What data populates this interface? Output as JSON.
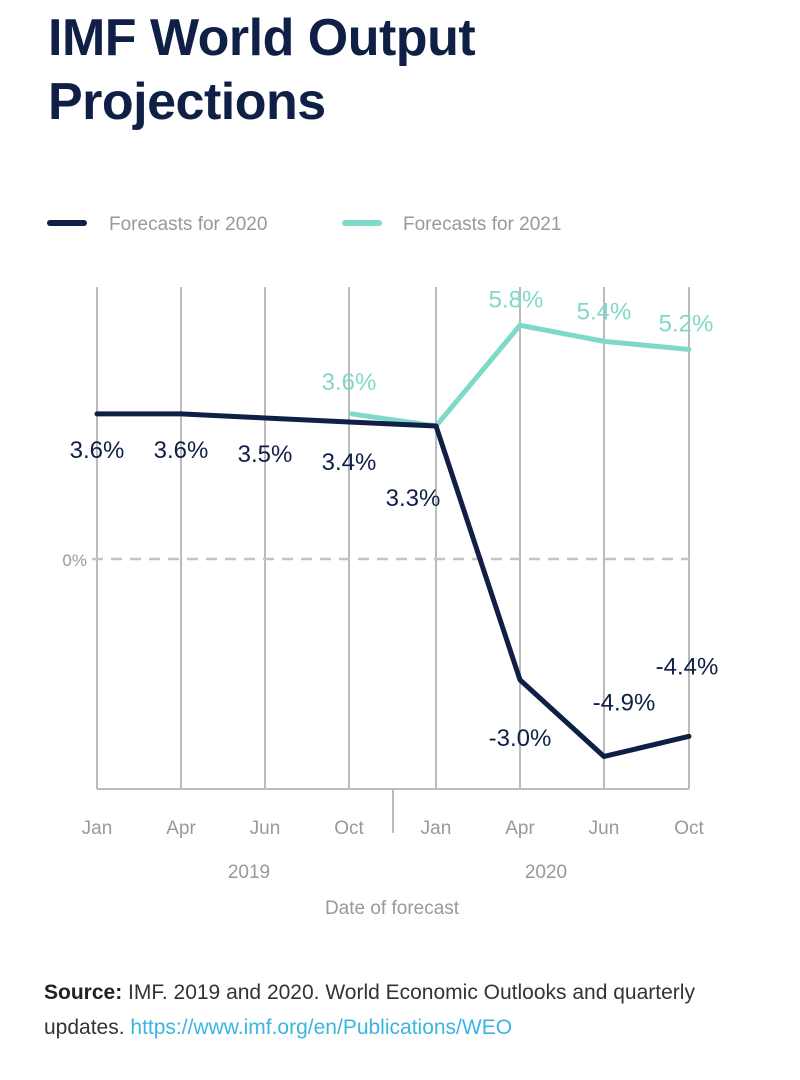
{
  "title": {
    "line1": "IMF World Output",
    "line2": "Projections"
  },
  "colors": {
    "title": "#0f1f45",
    "series_2020": "#0f1f45",
    "series_2021": "#7fd9c8",
    "grid": "#bbbbbb",
    "zero_line": "#c4c4c4",
    "axis_text": "#999999",
    "link": "#3bb4e3"
  },
  "chart_data": {
    "type": "line",
    "x": [
      "Jan",
      "Apr",
      "Jun",
      "Oct",
      "Jan",
      "Apr",
      "Jun",
      "Oct"
    ],
    "x_groups": [
      {
        "label": "2019",
        "span": [
          0,
          3
        ]
      },
      {
        "label": "2020",
        "span": [
          4,
          7
        ]
      }
    ],
    "xlabel": "Date of forecast",
    "ylabel": "",
    "zero_label": "0%",
    "ylim": [
      -6.0,
      5.8
    ],
    "grid": "vertical",
    "legend": "top-left",
    "series": [
      {
        "name": "Forecasts for 2020",
        "values": [
          3.6,
          3.6,
          3.5,
          3.4,
          3.3,
          -3.0,
          -4.9,
          -4.4
        ],
        "labels": [
          "3.6%",
          "3.6%",
          "3.5%",
          "3.4%",
          "3.3%",
          "-3.0%",
          "-4.9%",
          "-4.4%"
        ]
      },
      {
        "name": "Forecasts for 2021",
        "values": [
          null,
          null,
          null,
          3.6,
          3.3,
          5.8,
          5.4,
          5.2
        ],
        "labels": [
          null,
          null,
          null,
          "3.6%",
          null,
          "5.8%",
          "5.4%",
          "5.2%"
        ]
      }
    ]
  },
  "source": {
    "label": "Source:",
    "text": " IMF. 2019 and 2020. World Economic Outlooks and quarterly updates. ",
    "link": "https://www.imf.org/en/Publications/WEO"
  }
}
